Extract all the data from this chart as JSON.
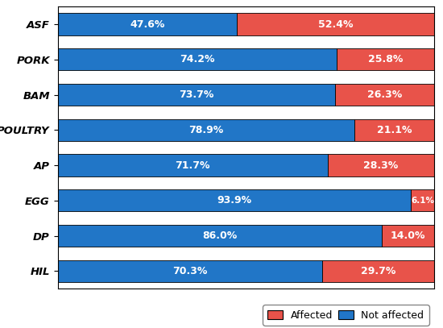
{
  "categories": [
    "ASF",
    "PORK",
    "BAM",
    "POULTRY",
    "AP",
    "EGG",
    "DP",
    "HIL"
  ],
  "not_affected": [
    47.6,
    74.2,
    73.7,
    78.9,
    71.7,
    93.9,
    86.0,
    70.3
  ],
  "affected": [
    52.4,
    25.8,
    26.3,
    21.1,
    28.3,
    6.1,
    14.0,
    29.7
  ],
  "color_not_affected": "#2176C7",
  "color_affected": "#E8534A",
  "bar_height": 0.62,
  "label_fontsize": 9,
  "tick_fontsize": 9.5,
  "legend_fontsize": 9,
  "text_color_white": "#FFFFFF",
  "text_color_black": "#000000",
  "background_color": "#FFFFFF",
  "edge_color": "#000000"
}
